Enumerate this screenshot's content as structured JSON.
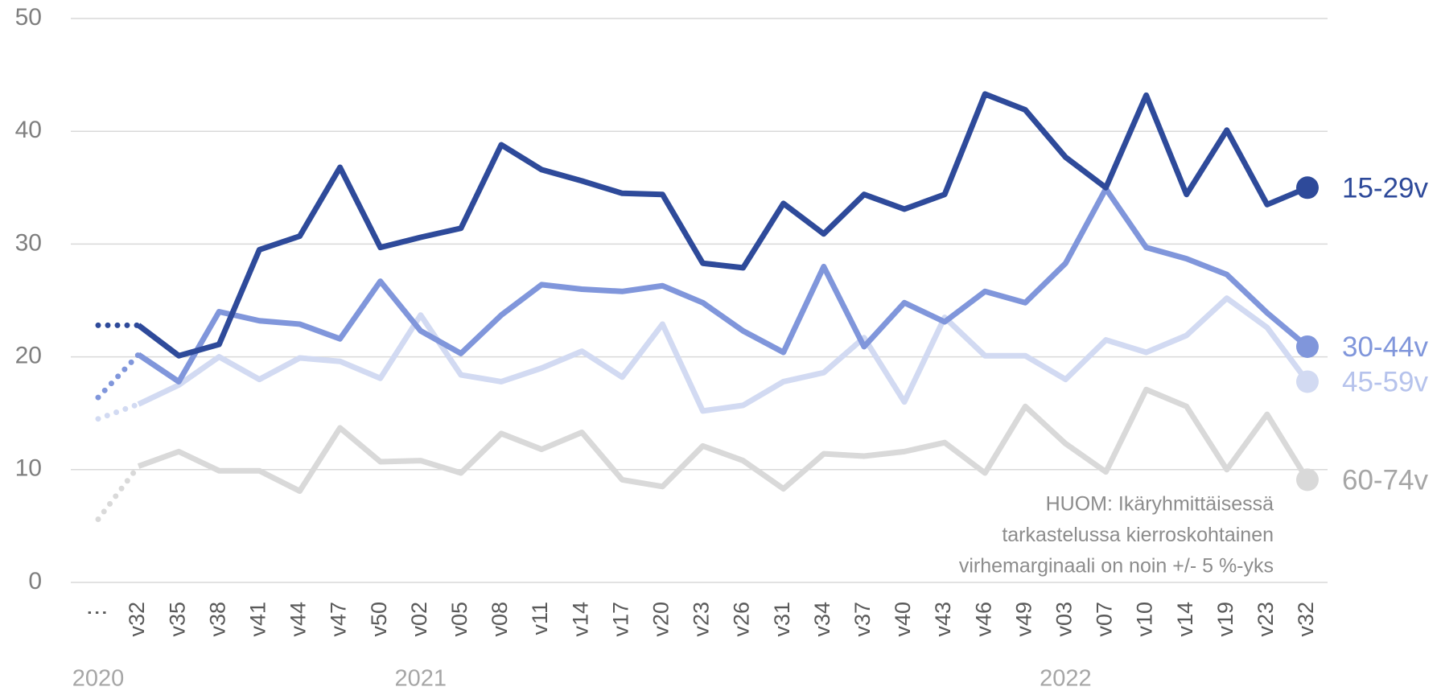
{
  "chart_data": {
    "type": "line",
    "categories": [
      "⋮",
      "v32",
      "v35",
      "v38",
      "v41",
      "v44",
      "v47",
      "v50",
      "v02",
      "v05",
      "v08",
      "v11",
      "v14",
      "v17",
      "v20",
      "v23",
      "v26",
      "v31",
      "v34",
      "v37",
      "v40",
      "v43",
      "v46",
      "v49",
      "v03",
      "v07",
      "v10",
      "v14",
      "v19",
      "v23",
      "v32"
    ],
    "year_labels": [
      "2020",
      null,
      null,
      null,
      null,
      null,
      null,
      null,
      "2021",
      null,
      null,
      null,
      null,
      null,
      null,
      null,
      null,
      null,
      null,
      null,
      null,
      null,
      null,
      null,
      "2022",
      null,
      null,
      null,
      null,
      null,
      null
    ],
    "series": [
      {
        "name": "15-29v",
        "color": "#2e4a9a",
        "label_color": "#2e4a9a",
        "values": [
          22.8,
          22.8,
          20.1,
          21.1,
          29.5,
          30.7,
          36.8,
          29.7,
          30.6,
          31.4,
          38.8,
          36.6,
          35.6,
          34.5,
          34.4,
          28.3,
          27.9,
          33.6,
          30.9,
          34.4,
          33.1,
          34.4,
          43.3,
          41.9,
          37.7,
          35.0,
          43.2,
          34.4,
          40.1,
          33.5,
          35.0
        ]
      },
      {
        "name": "30-44v",
        "color": "#8096db",
        "label_color": "#8096db",
        "values": [
          16.4,
          20.2,
          17.8,
          24.0,
          23.2,
          22.9,
          21.6,
          26.7,
          22.3,
          20.3,
          23.7,
          26.4,
          26.0,
          25.8,
          26.3,
          24.8,
          22.3,
          20.4,
          28.0,
          20.9,
          24.8,
          23.1,
          25.8,
          24.8,
          28.3,
          34.9,
          29.7,
          28.7,
          27.3,
          23.9,
          20.9
        ]
      },
      {
        "name": "45-59v",
        "color": "#d2daf2",
        "label_color": "#b6c3ec",
        "values": [
          14.5,
          15.8,
          17.5,
          20.0,
          18.0,
          19.9,
          19.6,
          18.1,
          23.7,
          18.4,
          17.8,
          19.0,
          20.5,
          18.2,
          22.9,
          15.2,
          15.7,
          17.8,
          18.6,
          21.7,
          16.0,
          23.5,
          20.1,
          20.1,
          18.0,
          21.5,
          20.4,
          21.9,
          25.2,
          22.6,
          17.8
        ]
      },
      {
        "name": "60-74v",
        "color": "#d9d9d9",
        "label_color": "#a6a6a6",
        "values": [
          5.6,
          10.3,
          11.6,
          9.9,
          9.9,
          8.1,
          13.7,
          10.7,
          10.8,
          9.7,
          13.2,
          11.8,
          13.3,
          9.1,
          8.5,
          12.1,
          10.8,
          8.3,
          11.4,
          11.2,
          11.6,
          12.4,
          9.7,
          15.6,
          12.3,
          9.8,
          17.1,
          15.6,
          10.0,
          14.9,
          9.1
        ]
      }
    ],
    "ylim": [
      0,
      50
    ],
    "yticks": [
      0,
      10,
      20,
      30,
      40,
      50
    ],
    "grid": true,
    "annotation": [
      "HUOM: Ikäryhmittäisessä",
      "tarkastelussa kierroskohtainen",
      "virhemarginaali on noin +/- 5 %-yks"
    ]
  }
}
